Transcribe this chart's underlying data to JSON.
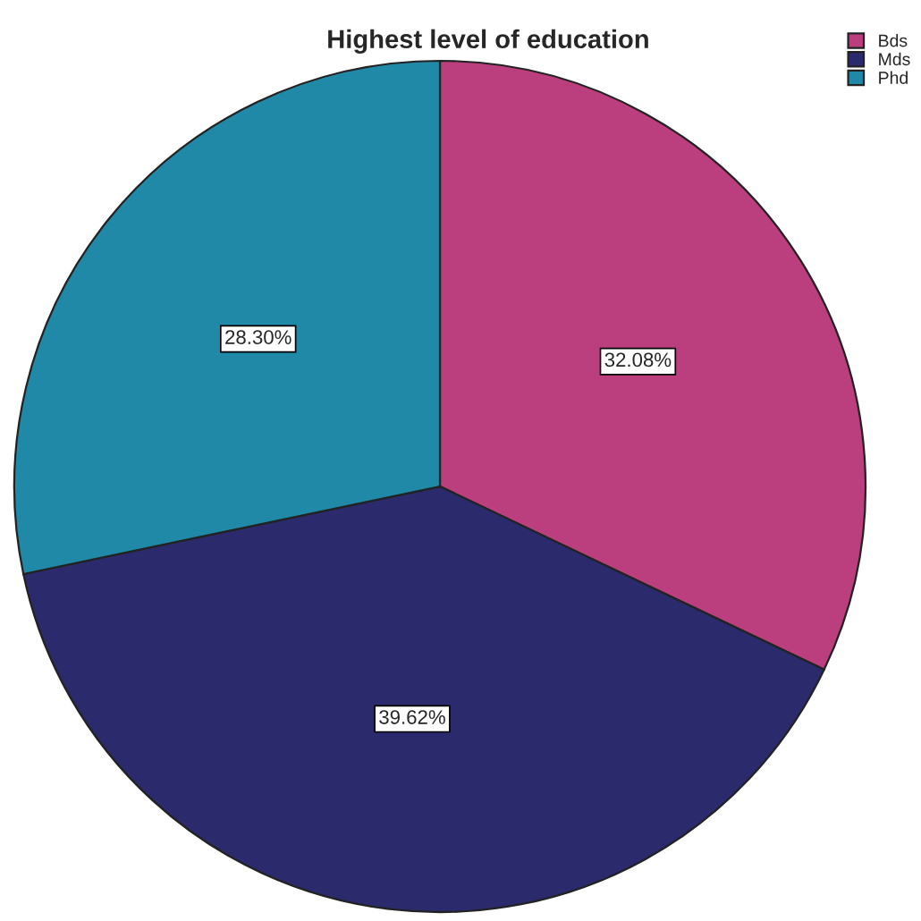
{
  "chart_data": {
    "type": "pie",
    "title": "Highest level of education",
    "categories": [
      "Bds",
      "Mds",
      "Phd"
    ],
    "values": [
      32.08,
      39.62,
      28.3
    ],
    "value_labels": [
      "32.08%",
      "39.62%",
      "28.30%"
    ],
    "colors": [
      "#bb3f7e",
      "#2b2a6c",
      "#2189a8"
    ],
    "legend": "top right"
  }
}
